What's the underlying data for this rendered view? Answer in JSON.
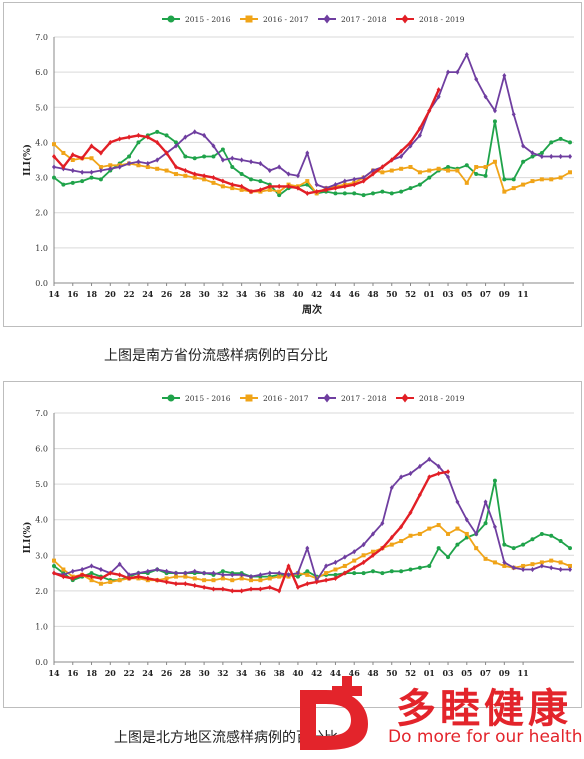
{
  "captions": {
    "top": "上图是南方省份流感样病例的百分比",
    "bottom": "上图是北方地区流感样病例的百分比"
  },
  "logo": {
    "name_cn": "多睦健康",
    "slogan_en": "Do more for our health",
    "color": "#e3242b"
  },
  "chart_data": [
    {
      "type": "line",
      "ylabel": "ILI(%)",
      "xlabel": "周次",
      "ylim": [
        0,
        7
      ],
      "yticks": [
        "0.0",
        "1.0",
        "2.0",
        "3.0",
        "4.0",
        "5.0",
        "6.0",
        "7.0"
      ],
      "xticks": [
        "14",
        "16",
        "18",
        "20",
        "22",
        "24",
        "26",
        "28",
        "30",
        "32",
        "34",
        "36",
        "38",
        "40",
        "42",
        "44",
        "46",
        "48",
        "50",
        "52",
        "01",
        "03",
        "05",
        "07",
        "09",
        "11"
      ],
      "grid": "horizontal",
      "legend_position": "top",
      "series": [
        {
          "name": "2015 - 2016",
          "color": "#1fa34a",
          "marker": "dot",
          "values": [
            3.0,
            2.8,
            2.85,
            2.9,
            3.0,
            2.95,
            3.2,
            3.4,
            3.6,
            4.0,
            4.2,
            4.3,
            4.2,
            4.0,
            3.6,
            3.55,
            3.6,
            3.6,
            3.8,
            3.3,
            3.1,
            2.95,
            2.9,
            2.8,
            2.5,
            2.7,
            2.75,
            2.8,
            2.55,
            2.6,
            2.55,
            2.55,
            2.55,
            2.5,
            2.55,
            2.6,
            2.55,
            2.6,
            2.7,
            2.8,
            3.0,
            3.2,
            3.3,
            3.25,
            3.35,
            3.1,
            3.05,
            4.6,
            2.95,
            2.95,
            3.45,
            3.6,
            3.7,
            4.0,
            4.1,
            4.0
          ]
        },
        {
          "name": "2016 - 2017",
          "color": "#f0a418",
          "marker": "square",
          "values": [
            3.95,
            3.7,
            3.5,
            3.55,
            3.55,
            3.3,
            3.35,
            3.35,
            3.4,
            3.35,
            3.3,
            3.25,
            3.2,
            3.1,
            3.05,
            3.0,
            2.95,
            2.85,
            2.75,
            2.7,
            2.65,
            2.6,
            2.6,
            2.65,
            2.6,
            2.8,
            2.75,
            2.9,
            2.55,
            2.7,
            2.75,
            2.8,
            2.85,
            3.0,
            3.2,
            3.15,
            3.2,
            3.25,
            3.3,
            3.15,
            3.2,
            3.25,
            3.2,
            3.2,
            2.85,
            3.3,
            3.3,
            3.45,
            2.6,
            2.7,
            2.8,
            2.9,
            2.95,
            2.95,
            3.0,
            3.15
          ]
        },
        {
          "name": "2017 - 2018",
          "color": "#6f3ea0",
          "marker": "diamond",
          "values": [
            3.3,
            3.25,
            3.2,
            3.15,
            3.15,
            3.2,
            3.25,
            3.3,
            3.4,
            3.45,
            3.4,
            3.5,
            3.7,
            3.9,
            4.15,
            4.3,
            4.2,
            3.9,
            3.5,
            3.55,
            3.5,
            3.45,
            3.4,
            3.2,
            3.3,
            3.1,
            3.05,
            3.7,
            2.8,
            2.7,
            2.8,
            2.9,
            2.95,
            3.0,
            3.2,
            3.3,
            3.5,
            3.6,
            3.9,
            4.2,
            4.9,
            5.3,
            6.0,
            6.0,
            6.5,
            5.8,
            5.3,
            4.9,
            5.9,
            4.8,
            3.9,
            3.7,
            3.6,
            3.6,
            3.6,
            3.6
          ]
        },
        {
          "name": "2018 - 2019",
          "color": "#e21f26",
          "marker": "diamond",
          "values": [
            3.6,
            3.3,
            3.65,
            3.55,
            3.9,
            3.7,
            4.0,
            4.1,
            4.15,
            4.2,
            4.15,
            4.0,
            3.7,
            3.3,
            3.2,
            3.1,
            3.05,
            3.0,
            2.9,
            2.8,
            2.75,
            2.6,
            2.65,
            2.75,
            2.75,
            2.75,
            2.7,
            2.55,
            2.6,
            2.65,
            2.7,
            2.75,
            2.8,
            2.9,
            3.1,
            3.3,
            3.5,
            3.75,
            4.0,
            4.4,
            4.9,
            5.5
          ]
        }
      ]
    },
    {
      "type": "line",
      "ylabel": "ILI(%)",
      "xlabel": "",
      "ylim": [
        0,
        7
      ],
      "yticks": [
        "0.0",
        "1.0",
        "2.0",
        "3.0",
        "4.0",
        "5.0",
        "6.0",
        "7.0"
      ],
      "xticks": [
        "14",
        "16",
        "18",
        "20",
        "22",
        "24",
        "26",
        "28",
        "30",
        "32",
        "34",
        "36",
        "38",
        "40",
        "42",
        "44",
        "46",
        "48",
        "50",
        "52",
        "01",
        "03",
        "05",
        "07",
        "09",
        "11"
      ],
      "grid": "horizontal",
      "legend_position": "top",
      "series": [
        {
          "name": "2015 - 2016",
          "color": "#1fa34a",
          "marker": "dot",
          "values": [
            2.7,
            2.5,
            2.3,
            2.4,
            2.5,
            2.4,
            2.3,
            2.3,
            2.4,
            2.5,
            2.5,
            2.6,
            2.5,
            2.5,
            2.5,
            2.5,
            2.5,
            2.45,
            2.55,
            2.5,
            2.5,
            2.4,
            2.4,
            2.4,
            2.45,
            2.45,
            2.4,
            2.55,
            2.4,
            2.45,
            2.45,
            2.5,
            2.5,
            2.5,
            2.55,
            2.5,
            2.55,
            2.55,
            2.6,
            2.65,
            2.7,
            3.2,
            2.95,
            3.3,
            3.5,
            3.6,
            3.9,
            5.1,
            3.3,
            3.2,
            3.3,
            3.45,
            3.6,
            3.55,
            3.4,
            3.2
          ]
        },
        {
          "name": "2016 - 2017",
          "color": "#f0a418",
          "marker": "square",
          "values": [
            2.85,
            2.6,
            2.4,
            2.45,
            2.3,
            2.2,
            2.25,
            2.3,
            2.35,
            2.35,
            2.3,
            2.3,
            2.35,
            2.4,
            2.4,
            2.35,
            2.3,
            2.3,
            2.35,
            2.3,
            2.35,
            2.3,
            2.3,
            2.35,
            2.4,
            2.4,
            2.5,
            2.45,
            2.35,
            2.5,
            2.6,
            2.7,
            2.85,
            3.0,
            3.1,
            3.2,
            3.3,
            3.4,
            3.55,
            3.6,
            3.75,
            3.85,
            3.6,
            3.75,
            3.6,
            3.2,
            2.9,
            2.8,
            2.7,
            2.65,
            2.7,
            2.75,
            2.8,
            2.85,
            2.8,
            2.7
          ]
        },
        {
          "name": "2017 - 2018",
          "color": "#6f3ea0",
          "marker": "diamond",
          "values": [
            2.5,
            2.45,
            2.55,
            2.6,
            2.7,
            2.6,
            2.5,
            2.75,
            2.45,
            2.5,
            2.55,
            2.6,
            2.55,
            2.5,
            2.5,
            2.55,
            2.5,
            2.5,
            2.45,
            2.45,
            2.45,
            2.4,
            2.45,
            2.5,
            2.5,
            2.45,
            2.5,
            3.2,
            2.3,
            2.7,
            2.8,
            2.95,
            3.1,
            3.3,
            3.6,
            3.9,
            4.9,
            5.2,
            5.3,
            5.5,
            5.7,
            5.5,
            5.2,
            4.5,
            4.0,
            3.6,
            4.5,
            3.8,
            2.8,
            2.65,
            2.6,
            2.6,
            2.7,
            2.65,
            2.6,
            2.6
          ]
        },
        {
          "name": "2018 - 2019",
          "color": "#e21f26",
          "marker": "diamond",
          "values": [
            2.5,
            2.4,
            2.35,
            2.45,
            2.4,
            2.35,
            2.5,
            2.45,
            2.35,
            2.4,
            2.35,
            2.3,
            2.25,
            2.2,
            2.2,
            2.15,
            2.1,
            2.05,
            2.05,
            2.0,
            2.0,
            2.05,
            2.05,
            2.1,
            2.0,
            2.7,
            2.1,
            2.2,
            2.25,
            2.3,
            2.35,
            2.5,
            2.65,
            2.8,
            3.0,
            3.2,
            3.5,
            3.8,
            4.2,
            4.7,
            5.2,
            5.3,
            5.35
          ]
        }
      ]
    }
  ]
}
